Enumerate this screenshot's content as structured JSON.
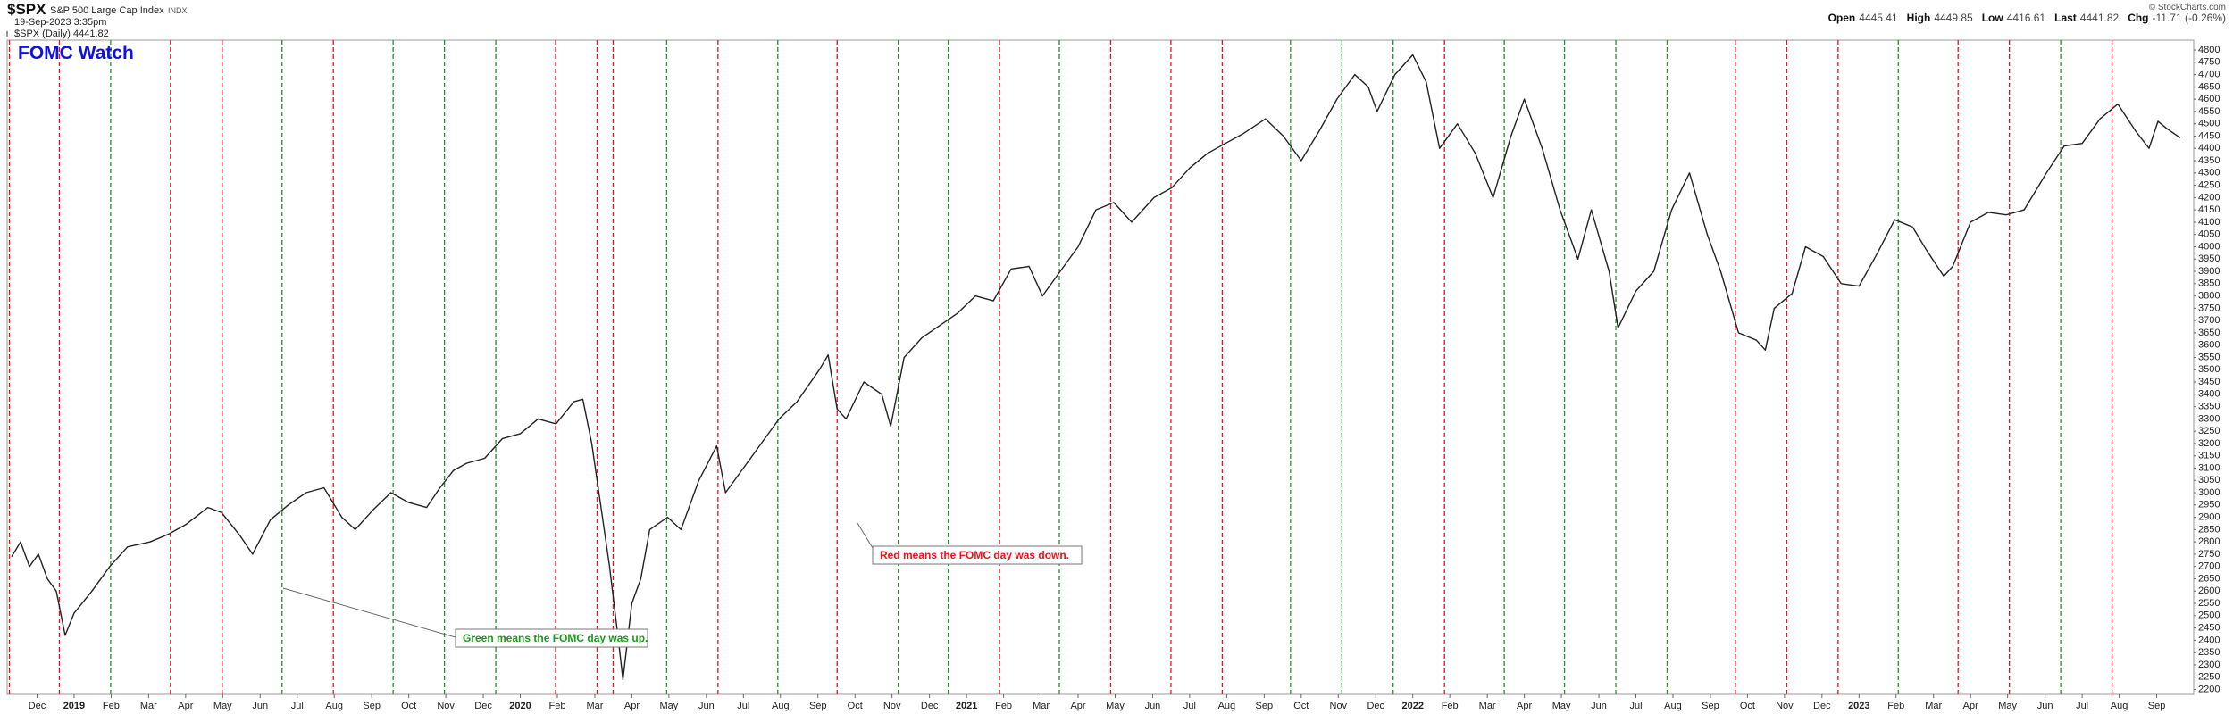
{
  "header": {
    "symbol": "$SPX",
    "name": "S&P 500 Large Cap Index",
    "exchange": "INDX",
    "datetime": "19-Sep-2023 3:35pm",
    "credit": "© StockCharts.com",
    "quote": [
      {
        "label": "Open",
        "value": "4445.41"
      },
      {
        "label": "High",
        "value": "4449.85"
      },
      {
        "label": "Low",
        "value": "4416.61"
      },
      {
        "label": "Last",
        "value": "4441.82"
      },
      {
        "label": "Chg",
        "value": "-11.71 (-0.26%)"
      }
    ]
  },
  "chart_data": {
    "type": "line",
    "title": "FOMC Watch",
    "x": [
      2018.86,
      2018.88,
      2018.9,
      2018.92,
      2018.94,
      2018.96,
      2018.98,
      2019.0,
      2019.04,
      2019.08,
      2019.12,
      2019.17,
      2019.21,
      2019.25,
      2019.3,
      2019.33,
      2019.37,
      2019.4,
      2019.44,
      2019.48,
      2019.52,
      2019.56,
      2019.6,
      2019.63,
      2019.67,
      2019.71,
      2019.75,
      2019.79,
      2019.82,
      2019.85,
      2019.88,
      2019.92,
      2019.96,
      2020.0,
      2020.04,
      2020.08,
      2020.12,
      2020.14,
      2020.16,
      2020.18,
      2020.2,
      2020.22,
      2020.23,
      2020.25,
      2020.27,
      2020.29,
      2020.33,
      2020.36,
      2020.4,
      2020.44,
      2020.46,
      2020.5,
      2020.54,
      2020.58,
      2020.62,
      2020.67,
      2020.69,
      2020.71,
      2020.73,
      2020.77,
      2020.81,
      2020.83,
      2020.86,
      2020.9,
      2020.94,
      2020.98,
      2021.02,
      2021.06,
      2021.1,
      2021.14,
      2021.17,
      2021.21,
      2021.25,
      2021.29,
      2021.33,
      2021.37,
      2021.42,
      2021.46,
      2021.5,
      2021.54,
      2021.58,
      2021.62,
      2021.67,
      2021.71,
      2021.75,
      2021.79,
      2021.83,
      2021.87,
      2021.9,
      2021.92,
      2021.96,
      2022.0,
      2022.03,
      2022.06,
      2022.1,
      2022.14,
      2022.18,
      2022.22,
      2022.25,
      2022.29,
      2022.33,
      2022.37,
      2022.4,
      2022.44,
      2022.46,
      2022.5,
      2022.54,
      2022.58,
      2022.62,
      2022.66,
      2022.69,
      2022.73,
      2022.77,
      2022.79,
      2022.81,
      2022.85,
      2022.88,
      2022.92,
      2022.96,
      2023.0,
      2023.04,
      2023.08,
      2023.12,
      2023.15,
      2023.19,
      2023.21,
      2023.25,
      2023.29,
      2023.33,
      2023.37,
      2023.42,
      2023.46,
      2023.5,
      2023.54,
      2023.58,
      2023.62,
      2023.65,
      2023.67,
      2023.69,
      2023.72
    ],
    "series": [
      {
        "name": "$SPX (Daily) 4441.82",
        "color": "#222222",
        "values": [
          2740,
          2800,
          2700,
          2750,
          2650,
          2600,
          2420,
          2510,
          2600,
          2700,
          2780,
          2800,
          2830,
          2870,
          2940,
          2920,
          2830,
          2750,
          2890,
          2950,
          3000,
          3020,
          2900,
          2850,
          2930,
          3000,
          2960,
          2940,
          3020,
          3090,
          3120,
          3140,
          3220,
          3240,
          3300,
          3280,
          3370,
          3380,
          3200,
          2950,
          2700,
          2400,
          2240,
          2550,
          2650,
          2850,
          2900,
          2850,
          3050,
          3190,
          3000,
          3100,
          3200,
          3300,
          3370,
          3500,
          3560,
          3340,
          3300,
          3450,
          3400,
          3270,
          3550,
          3630,
          3680,
          3730,
          3800,
          3780,
          3910,
          3920,
          3800,
          3900,
          4000,
          4150,
          4180,
          4100,
          4200,
          4240,
          4320,
          4380,
          4420,
          4460,
          4520,
          4450,
          4350,
          4470,
          4600,
          4700,
          4650,
          4550,
          4700,
          4780,
          4670,
          4400,
          4500,
          4380,
          4200,
          4450,
          4600,
          4400,
          4150,
          3950,
          4150,
          3900,
          3670,
          3820,
          3900,
          4150,
          4300,
          4050,
          3900,
          3650,
          3620,
          3580,
          3750,
          3810,
          4000,
          3960,
          3850,
          3840,
          3970,
          4110,
          4080,
          3990,
          3880,
          3920,
          4100,
          4140,
          4130,
          4150,
          4300,
          4410,
          4420,
          4520,
          4580,
          4470,
          4400,
          4510,
          4480,
          4443
        ]
      }
    ],
    "fomc_days": [
      {
        "x": 2018.855,
        "color": "#e8141e"
      },
      {
        "x": 2018.967,
        "color": "#e8141e"
      },
      {
        "x": 2019.082,
        "color": "#1a9a1a"
      },
      {
        "x": 2019.216,
        "color": "#e8141e"
      },
      {
        "x": 2019.332,
        "color": "#e8141e"
      },
      {
        "x": 2019.466,
        "color": "#1a9a1a"
      },
      {
        "x": 2019.581,
        "color": "#e8141e"
      },
      {
        "x": 2019.715,
        "color": "#1a9a1a"
      },
      {
        "x": 2019.83,
        "color": "#1a9a1a"
      },
      {
        "x": 2019.945,
        "color": "#1a9a1a"
      },
      {
        "x": 2020.079,
        "color": "#e8141e"
      },
      {
        "x": 2020.172,
        "color": "#e8141e"
      },
      {
        "x": 2020.208,
        "color": "#e8141e"
      },
      {
        "x": 2020.328,
        "color": "#1a9a1a"
      },
      {
        "x": 2020.443,
        "color": "#e8141e"
      },
      {
        "x": 2020.577,
        "color": "#1a9a1a"
      },
      {
        "x": 2020.71,
        "color": "#e8141e"
      },
      {
        "x": 2020.847,
        "color": "#1a9a1a"
      },
      {
        "x": 2020.959,
        "color": "#1a9a1a"
      },
      {
        "x": 2021.074,
        "color": "#e8141e"
      },
      {
        "x": 2021.208,
        "color": "#1a9a1a"
      },
      {
        "x": 2021.323,
        "color": "#e8141e"
      },
      {
        "x": 2021.458,
        "color": "#e8141e"
      },
      {
        "x": 2021.573,
        "color": "#e8141e"
      },
      {
        "x": 2021.726,
        "color": "#1a9a1a"
      },
      {
        "x": 2021.841,
        "color": "#1a9a1a"
      },
      {
        "x": 2021.956,
        "color": "#1a9a1a"
      },
      {
        "x": 2022.071,
        "color": "#e8141e"
      },
      {
        "x": 2022.205,
        "color": "#1a9a1a"
      },
      {
        "x": 2022.34,
        "color": "#1a9a1a"
      },
      {
        "x": 2022.455,
        "color": "#1a9a1a"
      },
      {
        "x": 2022.57,
        "color": "#1a9a1a"
      },
      {
        "x": 2022.723,
        "color": "#e8141e"
      },
      {
        "x": 2022.838,
        "color": "#e8141e"
      },
      {
        "x": 2022.953,
        "color": "#e8141e"
      },
      {
        "x": 2023.088,
        "color": "#1a9a1a"
      },
      {
        "x": 2023.222,
        "color": "#e8141e"
      },
      {
        "x": 2023.337,
        "color": "#e8141e"
      },
      {
        "x": 2023.452,
        "color": "#1a9a1a"
      },
      {
        "x": 2023.567,
        "color": "#e8141e"
      }
    ],
    "annotations": [
      {
        "text": "Green means the FOMC day was up.",
        "color": "#1a9a1a"
      },
      {
        "text": "Red means the FOMC day was down.",
        "color": "#e8141e"
      }
    ],
    "xlim": [
      2018.85,
      2023.75
    ],
    "ylim": [
      2180,
      4840
    ],
    "xticks": [
      {
        "value": 2018.917,
        "label": "Dec"
      },
      {
        "value": 2019,
        "label": "2019"
      },
      {
        "value": 2019.083,
        "label": "Feb"
      },
      {
        "value": 2019.167,
        "label": "Mar"
      },
      {
        "value": 2019.25,
        "label": "Apr"
      },
      {
        "value": 2019.333,
        "label": "May"
      },
      {
        "value": 2019.417,
        "label": "Jun"
      },
      {
        "value": 2019.5,
        "label": "Jul"
      },
      {
        "value": 2019.583,
        "label": "Aug"
      },
      {
        "value": 2019.667,
        "label": "Sep"
      },
      {
        "value": 2019.75,
        "label": "Oct"
      },
      {
        "value": 2019.833,
        "label": "Nov"
      },
      {
        "value": 2019.917,
        "label": "Dec"
      },
      {
        "value": 2020,
        "label": "2020"
      },
      {
        "value": 2020.083,
        "label": "Feb"
      },
      {
        "value": 2020.167,
        "label": "Mar"
      },
      {
        "value": 2020.25,
        "label": "Apr"
      },
      {
        "value": 2020.333,
        "label": "May"
      },
      {
        "value": 2020.417,
        "label": "Jun"
      },
      {
        "value": 2020.5,
        "label": "Jul"
      },
      {
        "value": 2020.583,
        "label": "Aug"
      },
      {
        "value": 2020.667,
        "label": "Sep"
      },
      {
        "value": 2020.75,
        "label": "Oct"
      },
      {
        "value": 2020.833,
        "label": "Nov"
      },
      {
        "value": 2020.917,
        "label": "Dec"
      },
      {
        "value": 2021,
        "label": "2021"
      },
      {
        "value": 2021.083,
        "label": "Feb"
      },
      {
        "value": 2021.167,
        "label": "Mar"
      },
      {
        "value": 2021.25,
        "label": "Apr"
      },
      {
        "value": 2021.333,
        "label": "May"
      },
      {
        "value": 2021.417,
        "label": "Jun"
      },
      {
        "value": 2021.5,
        "label": "Jul"
      },
      {
        "value": 2021.583,
        "label": "Aug"
      },
      {
        "value": 2021.667,
        "label": "Sep"
      },
      {
        "value": 2021.75,
        "label": "Oct"
      },
      {
        "value": 2021.833,
        "label": "Nov"
      },
      {
        "value": 2021.917,
        "label": "Dec"
      },
      {
        "value": 2022,
        "label": "2022"
      },
      {
        "value": 2022.083,
        "label": "Feb"
      },
      {
        "value": 2022.167,
        "label": "Mar"
      },
      {
        "value": 2022.25,
        "label": "Apr"
      },
      {
        "value": 2022.333,
        "label": "May"
      },
      {
        "value": 2022.417,
        "label": "Jun"
      },
      {
        "value": 2022.5,
        "label": "Jul"
      },
      {
        "value": 2022.583,
        "label": "Aug"
      },
      {
        "value": 2022.667,
        "label": "Sep"
      },
      {
        "value": 2022.75,
        "label": "Oct"
      },
      {
        "value": 2022.833,
        "label": "Nov"
      },
      {
        "value": 2022.917,
        "label": "Dec"
      },
      {
        "value": 2023,
        "label": "2023"
      },
      {
        "value": 2023.083,
        "label": "Feb"
      },
      {
        "value": 2023.167,
        "label": "Mar"
      },
      {
        "value": 2023.25,
        "label": "Apr"
      },
      {
        "value": 2023.333,
        "label": "May"
      },
      {
        "value": 2023.417,
        "label": "Jun"
      },
      {
        "value": 2023.5,
        "label": "Jul"
      },
      {
        "value": 2023.583,
        "label": "Aug"
      },
      {
        "value": 2023.667,
        "label": "Sep"
      }
    ],
    "yticks": [
      2200,
      2250,
      2300,
      2350,
      2400,
      2450,
      2500,
      2550,
      2600,
      2650,
      2700,
      2750,
      2800,
      2850,
      2900,
      2950,
      3000,
      3050,
      3100,
      3150,
      3200,
      3250,
      3300,
      3350,
      3400,
      3450,
      3500,
      3550,
      3600,
      3650,
      3700,
      3750,
      3800,
      3850,
      3900,
      3950,
      4000,
      4050,
      4100,
      4150,
      4200,
      4250,
      4300,
      4350,
      4400,
      4450,
      4500,
      4550,
      4600,
      4650,
      4700,
      4750,
      4800
    ]
  }
}
